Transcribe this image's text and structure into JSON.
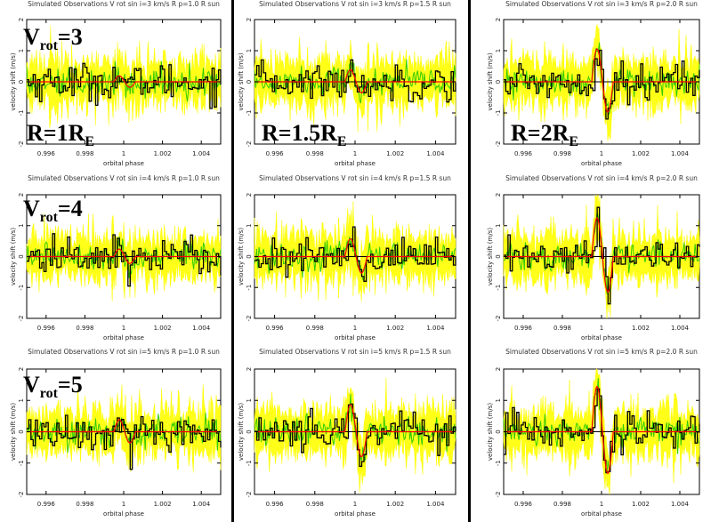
{
  "figure": {
    "row_labels": [
      {
        "main": "V",
        "sub": "rot",
        "tail": "=3"
      },
      {
        "main": "V",
        "sub": "rot",
        "tail": "=4"
      },
      {
        "main": "V",
        "sub": "rot",
        "tail": "=5"
      }
    ],
    "col_labels": [
      {
        "main": "R=1R",
        "sub": "E"
      },
      {
        "main": "R=1.5R",
        "sub": "E"
      },
      {
        "main": "R=2R",
        "sub": "E"
      }
    ]
  },
  "chart_data": [
    {
      "type": "line",
      "row": 0,
      "col": 0,
      "title": "Simulated Observations  V rot sin i=3 km/s  R p=1.0 R sun",
      "xlabel": "orbital phase",
      "ylabel": "velocity shift (m/s)",
      "xlim": [
        0.995,
        1.005
      ],
      "ylim": [
        -2,
        2
      ],
      "xticks": [
        0.996,
        0.998,
        1,
        1.002,
        1.004
      ],
      "xtick_labels": [
        "0.996",
        "0.998",
        "1",
        "1.002",
        "1.004"
      ],
      "yticks": [
        -2,
        -1,
        0,
        1,
        2
      ],
      "ytick_labels": [
        "-2",
        "-1",
        "0",
        "1",
        "2"
      ],
      "series": [
        {
          "model_amplitude": 0.2,
          "noise_sd": 0.3
        }
      ]
    },
    {
      "type": "line",
      "row": 0,
      "col": 1,
      "title": "Simulated Observations  V rot sin i=3 km/s  R p=1.5 R sun",
      "xlabel": "orbital phase",
      "ylabel": "velocity shift (m/s)",
      "xlim": [
        0.995,
        1.005
      ],
      "ylim": [
        -2,
        2
      ],
      "xticks": [
        0.996,
        0.998,
        1,
        1.002,
        1.004
      ],
      "xtick_labels": [
        "0.996",
        "0.998",
        "1",
        "1.002",
        "1.004"
      ],
      "yticks": [
        -2,
        -1,
        0,
        1,
        2
      ],
      "ytick_labels": [
        "-2",
        "-1",
        "0",
        "1",
        "2"
      ],
      "series": [
        {
          "model_amplitude": 0.4,
          "noise_sd": 0.3
        }
      ]
    },
    {
      "type": "line",
      "row": 0,
      "col": 2,
      "title": "Simulated Observations  V rot sin i=3 km/s  R p=2.0 R sun",
      "xlabel": "orbital phase",
      "ylabel": "velocity shift (m/s)",
      "xlim": [
        0.995,
        1.005
      ],
      "ylim": [
        -2,
        2
      ],
      "xticks": [
        0.996,
        0.998,
        1,
        1.002,
        1.004
      ],
      "xtick_labels": [
        "0.996",
        "0.998",
        "1",
        "1.002",
        "1.004"
      ],
      "yticks": [
        -2,
        -1,
        0,
        1,
        2
      ],
      "ytick_labels": [
        "-2",
        "-1",
        "0",
        "1",
        "2"
      ],
      "series": [
        {
          "model_amplitude": 1.1,
          "noise_sd": 0.3
        }
      ]
    },
    {
      "type": "line",
      "row": 1,
      "col": 0,
      "title": "Simulated Observations  V rot sin i=4 km/s  R p=1.0 R sun",
      "xlabel": "orbital phase",
      "ylabel": "velocity shift (m/s)",
      "xlim": [
        0.995,
        1.005
      ],
      "ylim": [
        -2,
        2
      ],
      "xticks": [
        0.996,
        0.998,
        1,
        1.002,
        1.004
      ],
      "xtick_labels": [
        "0.996",
        "0.998",
        "1",
        "1.002",
        "1.004"
      ],
      "yticks": [
        -2,
        -1,
        0,
        1,
        2
      ],
      "ytick_labels": [
        "-2",
        "-1",
        "0",
        "1",
        "2"
      ],
      "series": [
        {
          "model_amplitude": 0.25,
          "noise_sd": 0.3
        }
      ]
    },
    {
      "type": "line",
      "row": 1,
      "col": 1,
      "title": "Simulated Observations  V rot sin i=4 km/s  R p=1.5 R sun",
      "xlabel": "orbital phase",
      "ylabel": "velocity shift (m/s)",
      "xlim": [
        0.995,
        1.005
      ],
      "ylim": [
        -2,
        2
      ],
      "xticks": [
        0.996,
        0.998,
        1,
        1.002,
        1.004
      ],
      "xtick_labels": [
        "0.996",
        "0.998",
        "1",
        "1.002",
        "1.004"
      ],
      "yticks": [
        -2,
        -1,
        0,
        1,
        2
      ],
      "ytick_labels": [
        "-2",
        "-1",
        "0",
        "1",
        "2"
      ],
      "series": [
        {
          "model_amplitude": 0.6,
          "noise_sd": 0.3
        }
      ]
    },
    {
      "type": "line",
      "row": 1,
      "col": 2,
      "title": "Simulated Observations  V rot sin i=4 km/s  R p=2.0 R sun",
      "xlabel": "orbital phase",
      "ylabel": "velocity shift (m/s)",
      "xlim": [
        0.995,
        1.005
      ],
      "ylim": [
        -2,
        2
      ],
      "xticks": [
        0.996,
        0.998,
        1,
        1.002,
        1.004
      ],
      "xtick_labels": [
        "0.996",
        "0.998",
        "1",
        "1.002",
        "1.004"
      ],
      "yticks": [
        -2,
        -1,
        0,
        1,
        2
      ],
      "ytick_labels": [
        "-2",
        "-1",
        "0",
        "1",
        "2"
      ],
      "series": [
        {
          "model_amplitude": 1.3,
          "noise_sd": 0.3
        }
      ]
    },
    {
      "type": "line",
      "row": 2,
      "col": 0,
      "title": "Simulated Observations  V rot sin i=5 km/s  R p=1.0 R sun",
      "xlabel": "orbital phase",
      "ylabel": "velocity shift (m/s)",
      "xlim": [
        0.995,
        1.005
      ],
      "ylim": [
        -2,
        2
      ],
      "xticks": [
        0.996,
        0.998,
        1,
        1.002,
        1.004
      ],
      "xtick_labels": [
        "0.996",
        "0.998",
        "1",
        "1.002",
        "1.004"
      ],
      "yticks": [
        -2,
        -1,
        0,
        1,
        2
      ],
      "ytick_labels": [
        "-2",
        "-1",
        "0",
        "1",
        "2"
      ],
      "series": [
        {
          "model_amplitude": 0.4,
          "noise_sd": 0.3
        }
      ]
    },
    {
      "type": "line",
      "row": 2,
      "col": 1,
      "title": "Simulated Observations  V rot sin i=5 km/s  R p=1.5 R sun",
      "xlabel": "orbital phase",
      "ylabel": "velocity shift (m/s)",
      "xlim": [
        0.995,
        1.005
      ],
      "ylim": [
        -2,
        2
      ],
      "xticks": [
        0.996,
        0.998,
        1,
        1.002,
        1.004
      ],
      "xtick_labels": [
        "0.996",
        "0.998",
        "1",
        "1.002",
        "1.004"
      ],
      "yticks": [
        -2,
        -1,
        0,
        1,
        2
      ],
      "ytick_labels": [
        "-2",
        "-1",
        "0",
        "1",
        "2"
      ],
      "series": [
        {
          "model_amplitude": 0.9,
          "noise_sd": 0.3
        }
      ]
    },
    {
      "type": "line",
      "row": 2,
      "col": 2,
      "title": "Simulated Observations  V rot sin i=5 km/s  R p=2.0 R sun",
      "xlabel": "orbital phase",
      "ylabel": "velocity shift (m/s)",
      "xlim": [
        0.995,
        1.005
      ],
      "ylim": [
        -2,
        2
      ],
      "xticks": [
        0.996,
        0.998,
        1,
        1.002,
        1.004
      ],
      "xtick_labels": [
        "0.996",
        "0.998",
        "1",
        "1.002",
        "1.004"
      ],
      "yticks": [
        -2,
        -1,
        0,
        1,
        2
      ],
      "ytick_labels": [
        "-2",
        "-1",
        "0",
        "1",
        "2"
      ],
      "series": [
        {
          "model_amplitude": 1.5,
          "noise_sd": 0.3
        }
      ]
    }
  ],
  "colors": {
    "band": "#ffff00",
    "green": "#33cc00",
    "data": "#000000",
    "model": "#ff0000",
    "divider": "#000000"
  }
}
